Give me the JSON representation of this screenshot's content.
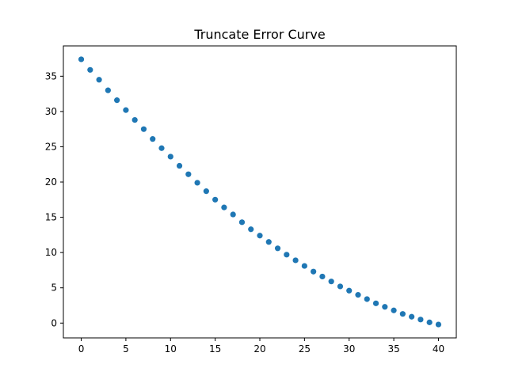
{
  "chart_data": {
    "type": "scatter",
    "title": "Truncate Error Curve",
    "xlabel": "",
    "ylabel": "",
    "xlim": [
      -2,
      42
    ],
    "ylim": [
      -2.1,
      39.3
    ],
    "x_ticks": [
      0,
      5,
      10,
      15,
      20,
      25,
      30,
      35,
      40
    ],
    "y_ticks": [
      0,
      5,
      10,
      15,
      20,
      25,
      30,
      35
    ],
    "grid": false,
    "marker_color": "#1f77b4",
    "series": [
      {
        "x": [
          0,
          1,
          2,
          3,
          4,
          5,
          6,
          7,
          8,
          9,
          10,
          11,
          12,
          13,
          14,
          15,
          16,
          17,
          18,
          19,
          20,
          21,
          22,
          23,
          24,
          25,
          26,
          27,
          28,
          29,
          30,
          31,
          32,
          33,
          34,
          35,
          36,
          37,
          38,
          39,
          40
        ],
        "y": [
          37.4,
          35.9,
          34.5,
          33.0,
          31.6,
          30.2,
          28.8,
          27.5,
          26.1,
          24.8,
          23.6,
          22.3,
          21.1,
          19.9,
          18.7,
          17.5,
          16.4,
          15.4,
          14.3,
          13.3,
          12.4,
          11.5,
          10.6,
          9.7,
          8.9,
          8.1,
          7.3,
          6.6,
          5.9,
          5.2,
          4.6,
          4.0,
          3.4,
          2.8,
          2.3,
          1.8,
          1.3,
          0.9,
          0.5,
          0.1,
          -0.2
        ]
      }
    ]
  }
}
